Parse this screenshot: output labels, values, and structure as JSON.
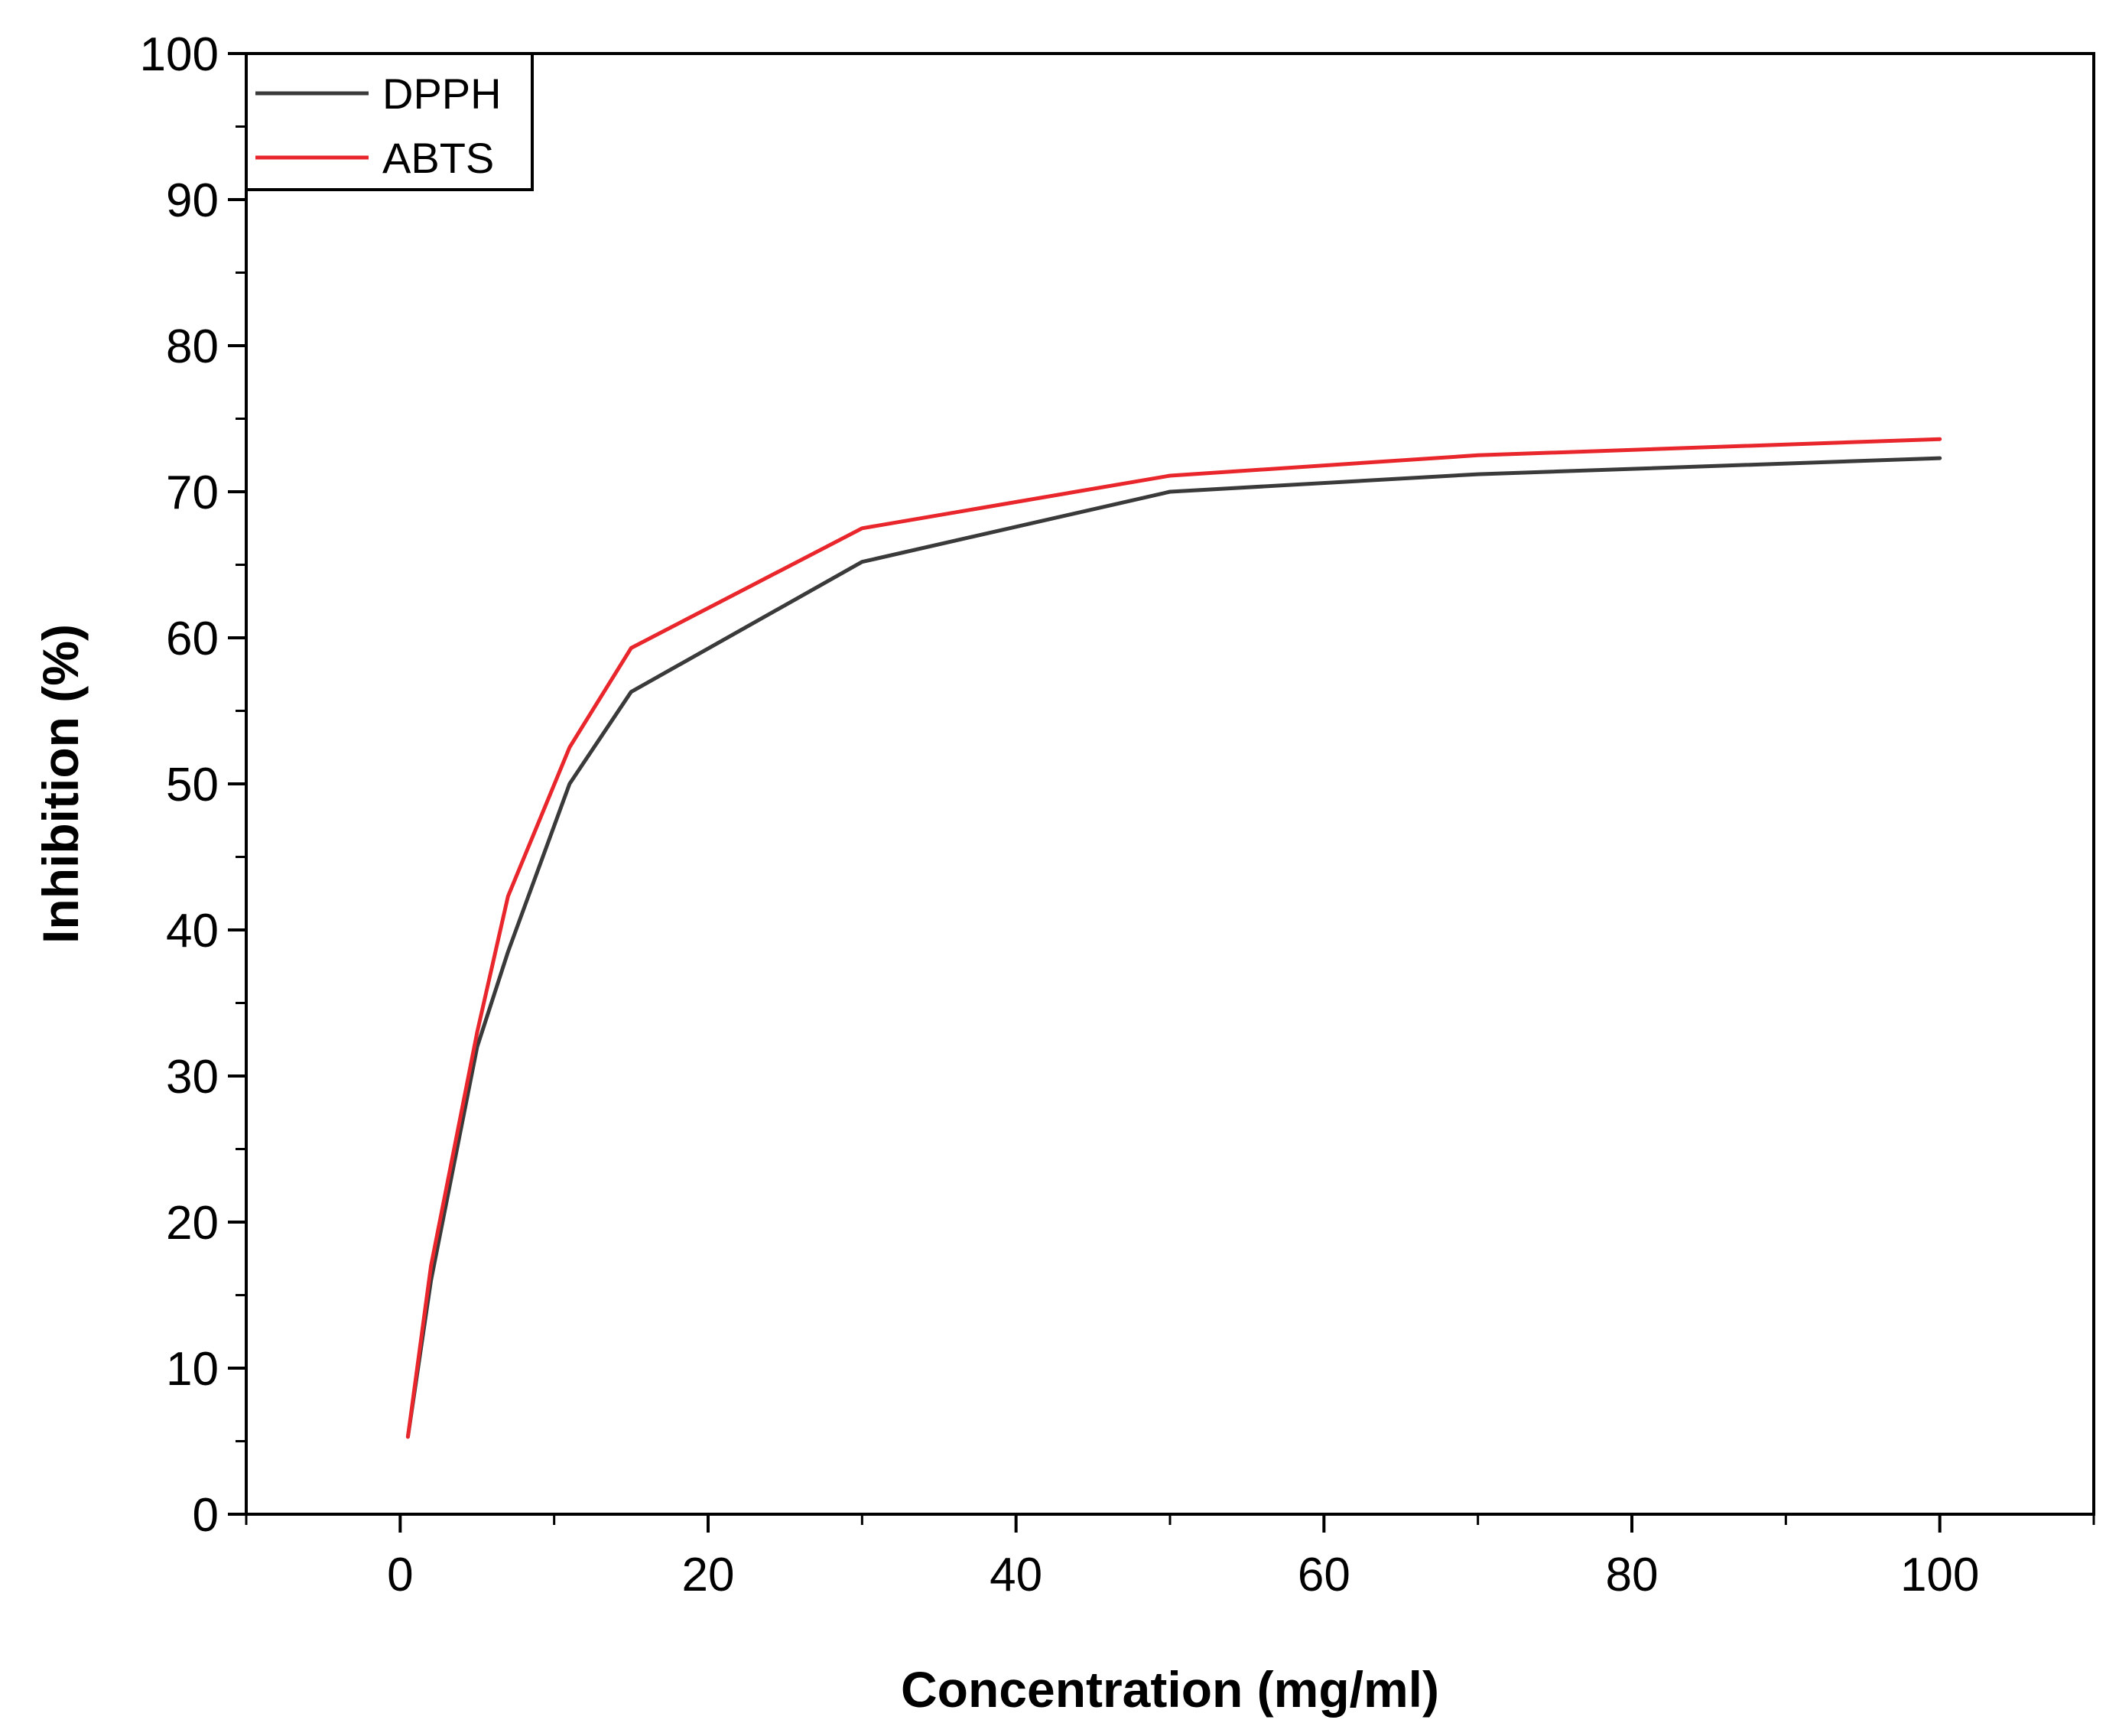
{
  "chart_data": {
    "type": "line",
    "title": "",
    "xlabel": "Concentration (mg/ml)",
    "ylabel": "Inhibition (%)",
    "xlim": [
      -10,
      110
    ],
    "ylim": [
      0,
      100
    ],
    "x_ticks": [
      0,
      20,
      40,
      60,
      80,
      100
    ],
    "y_ticks": [
      0,
      10,
      20,
      30,
      40,
      50,
      60,
      70,
      80,
      90,
      100
    ],
    "grid": false,
    "legend_position": "top-left",
    "series": [
      {
        "name": "DPPH",
        "color": "#3a3a3a",
        "x": [
          0.5,
          2,
          5,
          7,
          11,
          15,
          30,
          50,
          70,
          100
        ],
        "y": [
          5.3,
          16,
          32,
          38.5,
          50,
          56.3,
          65.2,
          70,
          71.2,
          72.3
        ]
      },
      {
        "name": "ABTS",
        "color": "#e8262b",
        "x": [
          0.5,
          2,
          5,
          7,
          11,
          15,
          30,
          50,
          70,
          100
        ],
        "y": [
          5.3,
          17,
          33,
          42.3,
          52.5,
          59.3,
          67.5,
          71.1,
          72.5,
          73.6
        ]
      }
    ]
  }
}
